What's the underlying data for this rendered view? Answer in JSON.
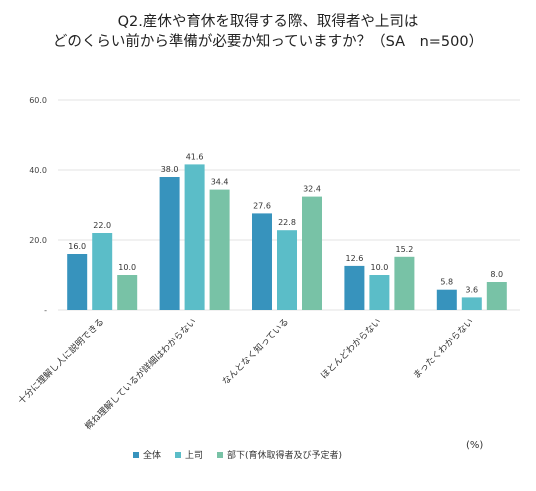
{
  "chart_data": {
    "type": "bar",
    "title_lines": [
      "Q2.産休や育休を取得する際、取得者や上司は",
      "どのくらい前から準備が必要か知っていますか？（SA　n=500）"
    ],
    "categories": [
      "十分に理解し人に説明できる",
      "概ね理解しているが詳細はわからない",
      "なんとなく知っている",
      "ほとんどわからない",
      "まったくわからない"
    ],
    "series": [
      {
        "name": "全体",
        "color": "#3793bd",
        "values": [
          16.0,
          38.0,
          27.6,
          12.6,
          5.8
        ]
      },
      {
        "name": "上司",
        "color": "#5bbdc8",
        "values": [
          22.0,
          41.6,
          22.8,
          10.0,
          3.6
        ]
      },
      {
        "name": "部下(育休取得者及び予定者)",
        "color": "#78c2a6",
        "values": [
          10.0,
          34.4,
          32.4,
          15.2,
          8.0
        ]
      }
    ],
    "ylim": [
      0,
      60
    ],
    "y_ticks": [
      "-",
      "20.0",
      "40.0",
      "60.0"
    ],
    "y_tick_values": [
      0,
      20,
      40,
      60
    ],
    "unit": "(%)",
    "grid": true,
    "legend_position": "bottom"
  }
}
